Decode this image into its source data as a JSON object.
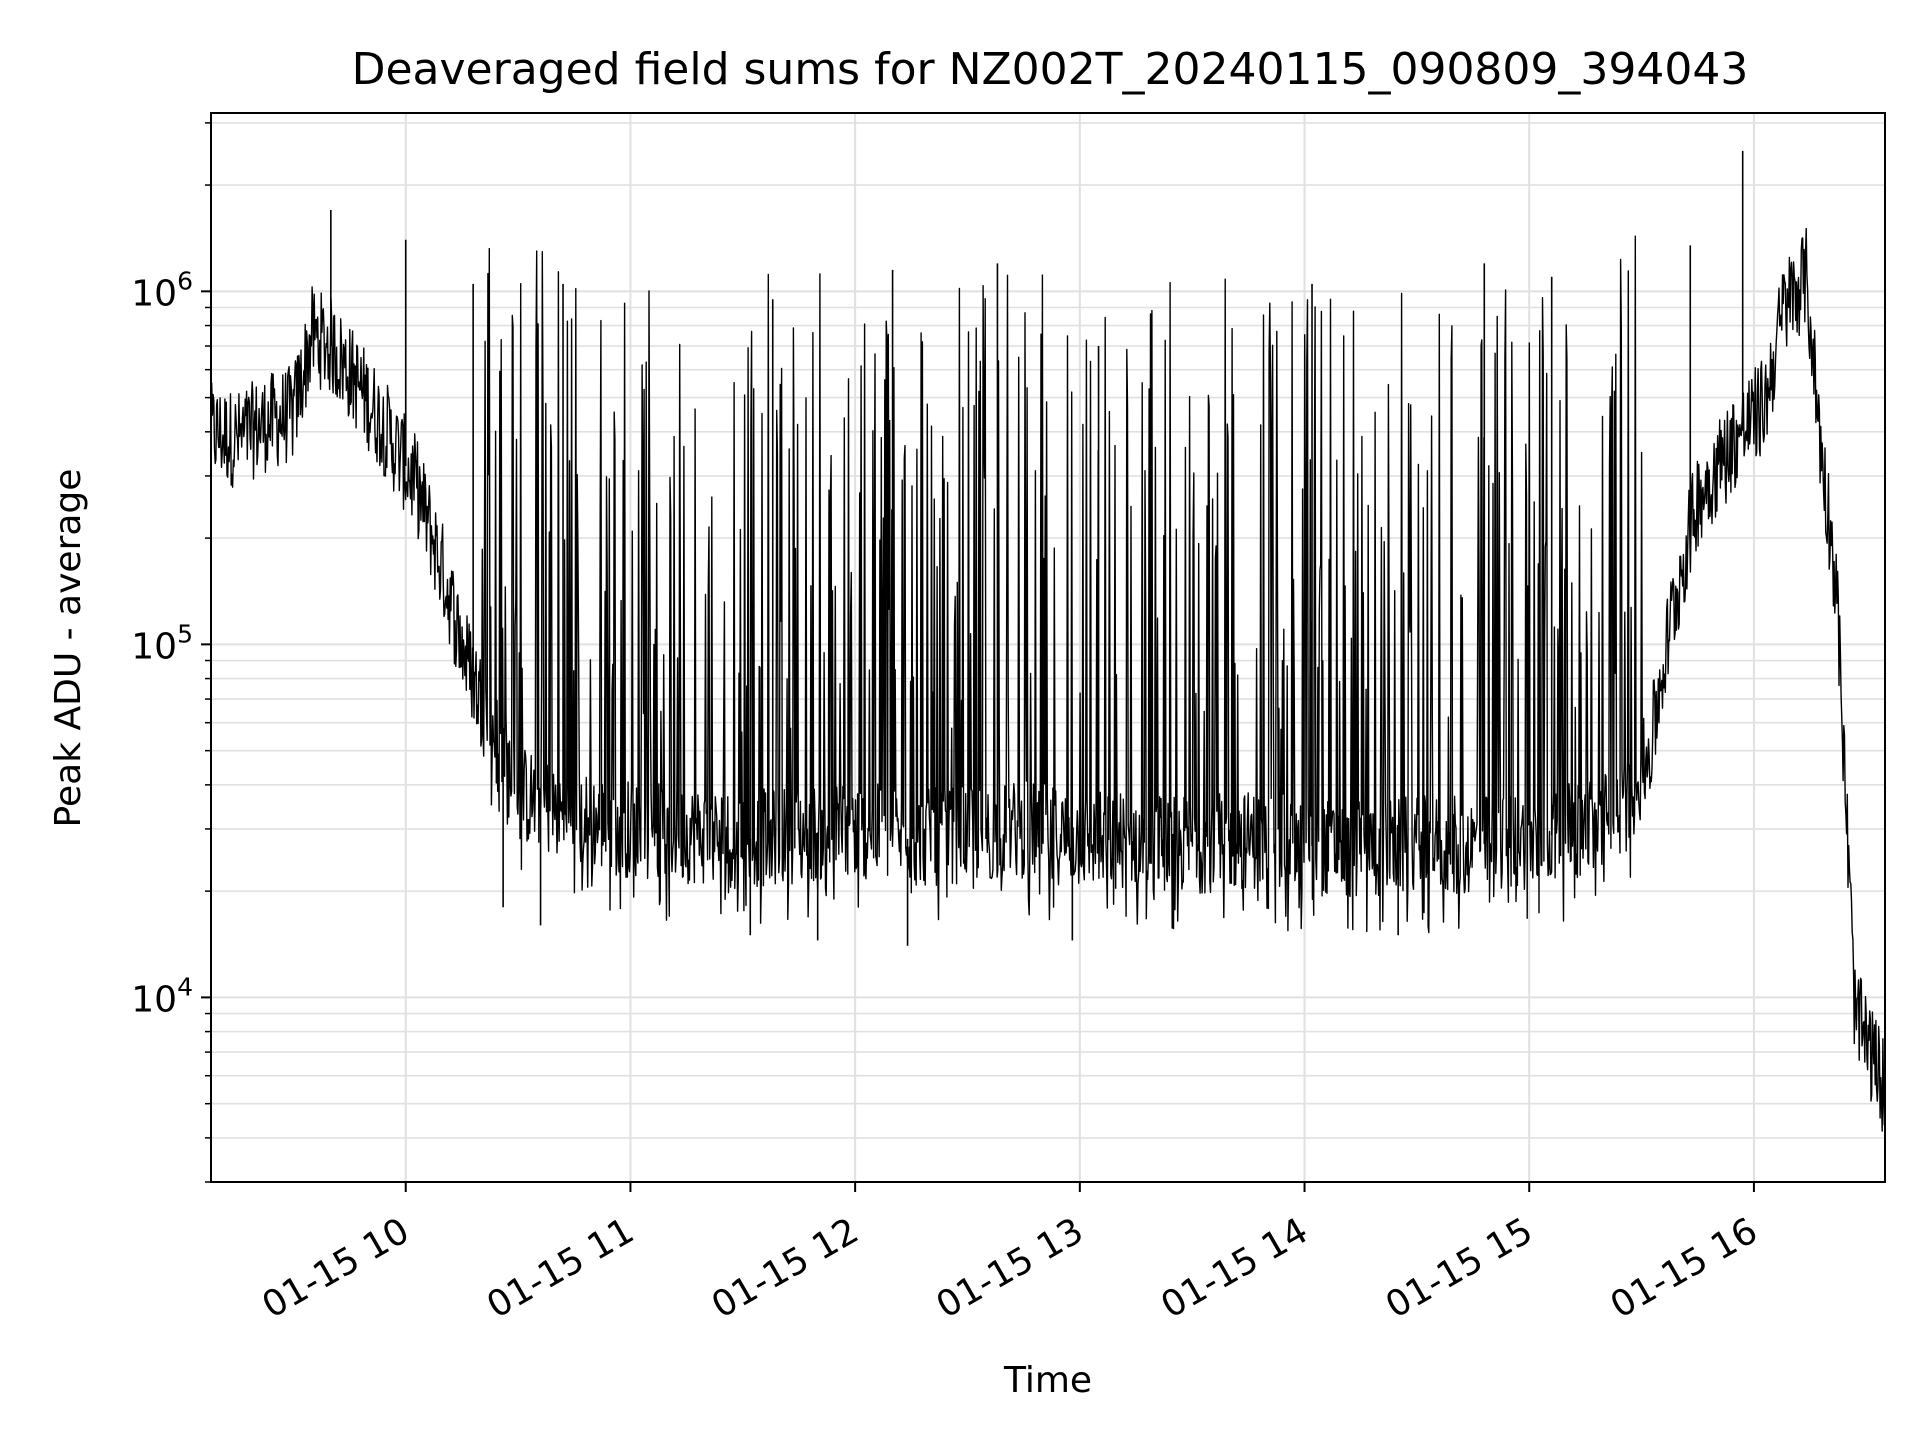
{
  "chart_data": {
    "type": "line",
    "title": "Deaveraged field sums for NZ002T_20240115_090809_394043",
    "xlabel": "Time",
    "ylabel": "Peak ADU - average",
    "yscale": "log",
    "ylim": [
      3000,
      3200000
    ],
    "xlim": [
      "2024-01-15 09:08",
      "2024-01-15 16:35"
    ],
    "x_ticks": [
      "01-15 10",
      "01-15 11",
      "01-15 12",
      "01-15 13",
      "01-15 14",
      "01-15 15",
      "01-15 16"
    ],
    "y_ticks": [
      {
        "base": "10",
        "exp": "4"
      },
      {
        "base": "10",
        "exp": "5"
      },
      {
        "base": "10",
        "exp": "6"
      }
    ],
    "grid": true,
    "line_color": "#000000",
    "grid_color": "#e0e0e0",
    "series": [
      {
        "x": [
          "2024-01-15 09:08",
          "2024-01-15 09:15",
          "2024-01-15 09:22",
          "2024-01-15 09:30",
          "2024-01-15 09:35",
          "2024-01-15 09:40",
          "2024-01-15 09:47",
          "2024-01-15 09:55",
          "2024-01-15 10:03",
          "2024-01-15 10:10",
          "2024-01-15 10:15",
          "2024-01-15 10:20",
          "2024-01-15 10:30",
          "2024-01-15 10:45",
          "2024-01-15 11:00",
          "2024-01-15 11:15",
          "2024-01-15 11:30",
          "2024-01-15 11:45",
          "2024-01-15 12:00",
          "2024-01-15 12:15",
          "2024-01-15 12:30",
          "2024-01-15 12:45",
          "2024-01-15 13:00",
          "2024-01-15 13:15",
          "2024-01-15 13:30",
          "2024-01-15 13:45",
          "2024-01-15 14:00",
          "2024-01-15 14:15",
          "2024-01-15 14:30",
          "2024-01-15 14:45",
          "2024-01-15 15:00",
          "2024-01-15 15:15",
          "2024-01-15 15:25",
          "2024-01-15 15:32",
          "2024-01-15 15:38",
          "2024-01-15 15:45",
          "2024-01-15 15:55",
          "2024-01-15 16:03",
          "2024-01-15 16:08",
          "2024-01-15 16:14",
          "2024-01-15 16:18",
          "2024-01-15 16:22",
          "2024-01-15 16:27",
          "2024-01-15 16:35"
        ],
        "values": [
          400000,
          380000,
          420000,
          450000,
          750000,
          700000,
          550000,
          400000,
          280000,
          160000,
          100000,
          70000,
          38000,
          32000,
          30000,
          29000,
          28000,
          29000,
          30000,
          28000,
          29000,
          30000,
          28000,
          28000,
          27000,
          28000,
          27000,
          26000,
          27000,
          27000,
          28000,
          30000,
          34000,
          48000,
          120000,
          260000,
          380000,
          480000,
          900000,
          1100000,
          350000,
          150000,
          9000,
          5500
        ]
      }
    ],
    "spikes": [
      {
        "x": "2024-01-15 09:40",
        "y": 1700000
      },
      {
        "x": "2024-01-15 10:00",
        "y": 1400000
      },
      {
        "x": "2024-01-15 10:18",
        "y": 1050000
      },
      {
        "x": "2024-01-15 10:42",
        "y": 1050000
      },
      {
        "x": "2024-01-15 11:38",
        "y": 950000
      },
      {
        "x": "2024-01-15 12:10",
        "y": 1150000
      },
      {
        "x": "2024-01-15 12:38",
        "y": 1200000
      },
      {
        "x": "2024-01-15 13:05",
        "y": 700000
      },
      {
        "x": "2024-01-15 14:02",
        "y": 1050000
      },
      {
        "x": "2024-01-15 14:48",
        "y": 1200000
      },
      {
        "x": "2024-01-15 15:06",
        "y": 1100000
      },
      {
        "x": "2024-01-15 15:43",
        "y": 1350000
      },
      {
        "x": "2024-01-15 15:57",
        "y": 2500000
      }
    ],
    "dips": [
      {
        "x": "2024-01-15 10:26",
        "y": 18000
      },
      {
        "x": "2024-01-15 10:36",
        "y": 16000
      },
      {
        "x": "2024-01-15 11:32",
        "y": 15000
      },
      {
        "x": "2024-01-15 11:50",
        "y": 14500
      },
      {
        "x": "2024-01-15 12:14",
        "y": 14000
      },
      {
        "x": "2024-01-15 12:58",
        "y": 14500
      },
      {
        "x": "2024-01-15 14:25",
        "y": 15000
      }
    ]
  }
}
